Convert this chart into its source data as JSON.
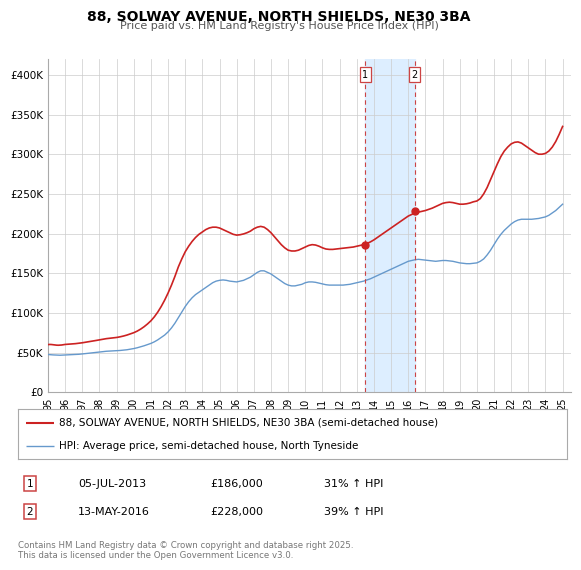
{
  "title": "88, SOLWAY AVENUE, NORTH SHIELDS, NE30 3BA",
  "subtitle": "Price paid vs. HM Land Registry's House Price Index (HPI)",
  "legend_line1": "88, SOLWAY AVENUE, NORTH SHIELDS, NE30 3BA (semi-detached house)",
  "legend_line2": "HPI: Average price, semi-detached house, North Tyneside",
  "transaction1_date": "05-JUL-2013",
  "transaction1_price": "£186,000",
  "transaction1_hpi": "31% ↑ HPI",
  "transaction1_year": 2013.5,
  "transaction2_date": "13-MAY-2016",
  "transaction2_price": "£228,000",
  "transaction2_hpi": "39% ↑ HPI",
  "transaction2_year": 2016.37,
  "footer": "Contains HM Land Registry data © Crown copyright and database right 2025.\nThis data is licensed under the Open Government Licence v3.0.",
  "hpi_color": "#6699cc",
  "price_color": "#cc2222",
  "marker_color": "#cc2222",
  "highlight_color": "#ddeeff",
  "vline_color": "#cc4444",
  "grid_color": "#cccccc",
  "background_color": "#ffffff",
  "ylim": [
    0,
    420000
  ],
  "xlim_start": 1995,
  "xlim_end": 2025.5,
  "ylabel_ticks": [
    0,
    50000,
    100000,
    150000,
    200000,
    250000,
    300000,
    350000,
    400000
  ],
  "ylabel_labels": [
    "£0",
    "£50K",
    "£100K",
    "£150K",
    "£200K",
    "£250K",
    "£300K",
    "£350K",
    "£400K"
  ],
  "hpi_data": [
    [
      1995.0,
      47500
    ],
    [
      1995.1,
      47300
    ],
    [
      1995.2,
      47100
    ],
    [
      1995.3,
      47000
    ],
    [
      1995.4,
      46900
    ],
    [
      1995.5,
      46800
    ],
    [
      1995.6,
      46700
    ],
    [
      1995.7,
      46600
    ],
    [
      1995.8,
      46700
    ],
    [
      1995.9,
      46800
    ],
    [
      1996.0,
      46900
    ],
    [
      1996.2,
      47000
    ],
    [
      1996.4,
      47200
    ],
    [
      1996.6,
      47500
    ],
    [
      1996.8,
      47800
    ],
    [
      1997.0,
      48200
    ],
    [
      1997.2,
      48700
    ],
    [
      1997.4,
      49200
    ],
    [
      1997.6,
      49700
    ],
    [
      1997.8,
      50200
    ],
    [
      1998.0,
      50700
    ],
    [
      1998.2,
      51200
    ],
    [
      1998.4,
      51600
    ],
    [
      1998.6,
      51900
    ],
    [
      1998.8,
      52100
    ],
    [
      1999.0,
      52300
    ],
    [
      1999.2,
      52600
    ],
    [
      1999.4,
      53000
    ],
    [
      1999.6,
      53500
    ],
    [
      1999.8,
      54200
    ],
    [
      2000.0,
      55000
    ],
    [
      2000.2,
      56000
    ],
    [
      2000.4,
      57200
    ],
    [
      2000.6,
      58500
    ],
    [
      2000.8,
      60000
    ],
    [
      2001.0,
      61500
    ],
    [
      2001.2,
      63500
    ],
    [
      2001.4,
      66000
    ],
    [
      2001.6,
      69000
    ],
    [
      2001.8,
      72000
    ],
    [
      2002.0,
      76000
    ],
    [
      2002.2,
      81000
    ],
    [
      2002.4,
      87000
    ],
    [
      2002.6,
      94000
    ],
    [
      2002.8,
      101000
    ],
    [
      2003.0,
      108000
    ],
    [
      2003.2,
      114000
    ],
    [
      2003.4,
      119000
    ],
    [
      2003.6,
      123000
    ],
    [
      2003.8,
      126000
    ],
    [
      2004.0,
      129000
    ],
    [
      2004.2,
      132000
    ],
    [
      2004.4,
      135000
    ],
    [
      2004.6,
      138000
    ],
    [
      2004.8,
      140000
    ],
    [
      2005.0,
      141000
    ],
    [
      2005.2,
      141500
    ],
    [
      2005.4,
      141000
    ],
    [
      2005.6,
      140000
    ],
    [
      2005.8,
      139500
    ],
    [
      2006.0,
      139000
    ],
    [
      2006.2,
      140000
    ],
    [
      2006.4,
      141000
    ],
    [
      2006.6,
      143000
    ],
    [
      2006.8,
      145000
    ],
    [
      2007.0,
      148000
    ],
    [
      2007.2,
      151000
    ],
    [
      2007.4,
      153000
    ],
    [
      2007.6,
      153000
    ],
    [
      2007.8,
      151000
    ],
    [
      2008.0,
      149000
    ],
    [
      2008.2,
      146000
    ],
    [
      2008.4,
      143000
    ],
    [
      2008.6,
      140000
    ],
    [
      2008.8,
      137000
    ],
    [
      2009.0,
      135000
    ],
    [
      2009.2,
      134000
    ],
    [
      2009.4,
      134000
    ],
    [
      2009.6,
      135000
    ],
    [
      2009.8,
      136000
    ],
    [
      2010.0,
      138000
    ],
    [
      2010.2,
      139000
    ],
    [
      2010.4,
      139000
    ],
    [
      2010.6,
      138500
    ],
    [
      2010.8,
      137500
    ],
    [
      2011.0,
      136500
    ],
    [
      2011.2,
      135500
    ],
    [
      2011.4,
      135000
    ],
    [
      2011.6,
      135000
    ],
    [
      2011.8,
      135000
    ],
    [
      2012.0,
      135000
    ],
    [
      2012.2,
      135000
    ],
    [
      2012.4,
      135500
    ],
    [
      2012.6,
      136000
    ],
    [
      2012.8,
      137000
    ],
    [
      2013.0,
      138000
    ],
    [
      2013.2,
      139000
    ],
    [
      2013.4,
      140000
    ],
    [
      2013.6,
      141500
    ],
    [
      2013.8,
      143000
    ],
    [
      2014.0,
      145000
    ],
    [
      2014.2,
      147000
    ],
    [
      2014.4,
      149000
    ],
    [
      2014.6,
      151000
    ],
    [
      2014.8,
      153000
    ],
    [
      2015.0,
      155000
    ],
    [
      2015.2,
      157000
    ],
    [
      2015.4,
      159000
    ],
    [
      2015.6,
      161000
    ],
    [
      2015.8,
      163000
    ],
    [
      2016.0,
      165000
    ],
    [
      2016.2,
      166000
    ],
    [
      2016.4,
      167000
    ],
    [
      2016.6,
      167500
    ],
    [
      2016.8,
      167000
    ],
    [
      2017.0,
      166500
    ],
    [
      2017.2,
      166000
    ],
    [
      2017.4,
      165500
    ],
    [
      2017.6,
      165000
    ],
    [
      2017.8,
      165500
    ],
    [
      2018.0,
      166000
    ],
    [
      2018.2,
      166000
    ],
    [
      2018.4,
      165500
    ],
    [
      2018.6,
      165000
    ],
    [
      2018.8,
      164000
    ],
    [
      2019.0,
      163000
    ],
    [
      2019.2,
      162500
    ],
    [
      2019.4,
      162000
    ],
    [
      2019.6,
      162000
    ],
    [
      2019.8,
      162500
    ],
    [
      2020.0,
      163000
    ],
    [
      2020.2,
      165000
    ],
    [
      2020.4,
      168000
    ],
    [
      2020.6,
      173000
    ],
    [
      2020.8,
      179000
    ],
    [
      2021.0,
      186000
    ],
    [
      2021.2,
      193000
    ],
    [
      2021.4,
      199000
    ],
    [
      2021.6,
      204000
    ],
    [
      2021.8,
      208000
    ],
    [
      2022.0,
      212000
    ],
    [
      2022.2,
      215000
    ],
    [
      2022.4,
      217000
    ],
    [
      2022.6,
      218000
    ],
    [
      2022.8,
      218000
    ],
    [
      2023.0,
      218000
    ],
    [
      2023.2,
      218000
    ],
    [
      2023.4,
      218500
    ],
    [
      2023.6,
      219000
    ],
    [
      2023.8,
      220000
    ],
    [
      2024.0,
      221000
    ],
    [
      2024.2,
      223000
    ],
    [
      2024.4,
      226000
    ],
    [
      2024.6,
      229000
    ],
    [
      2024.8,
      233000
    ],
    [
      2025.0,
      237000
    ]
  ],
  "price_data": [
    [
      1995.0,
      60000
    ],
    [
      1995.1,
      60200
    ],
    [
      1995.2,
      60100
    ],
    [
      1995.3,
      59800
    ],
    [
      1995.4,
      59500
    ],
    [
      1995.5,
      59300
    ],
    [
      1995.6,
      59200
    ],
    [
      1995.7,
      59300
    ],
    [
      1995.8,
      59500
    ],
    [
      1995.9,
      59800
    ],
    [
      1996.0,
      60200
    ],
    [
      1996.2,
      60500
    ],
    [
      1996.4,
      60800
    ],
    [
      1996.6,
      61200
    ],
    [
      1996.8,
      61700
    ],
    [
      1997.0,
      62300
    ],
    [
      1997.2,
      63000
    ],
    [
      1997.4,
      63700
    ],
    [
      1997.6,
      64400
    ],
    [
      1997.8,
      65200
    ],
    [
      1998.0,
      66000
    ],
    [
      1998.2,
      66800
    ],
    [
      1998.4,
      67500
    ],
    [
      1998.6,
      68000
    ],
    [
      1998.8,
      68500
    ],
    [
      1999.0,
      69000
    ],
    [
      1999.2,
      69800
    ],
    [
      1999.4,
      70800
    ],
    [
      1999.6,
      72000
    ],
    [
      1999.8,
      73500
    ],
    [
      2000.0,
      75000
    ],
    [
      2000.2,
      77000
    ],
    [
      2000.4,
      79500
    ],
    [
      2000.6,
      82500
    ],
    [
      2000.8,
      86000
    ],
    [
      2001.0,
      90000
    ],
    [
      2001.2,
      95000
    ],
    [
      2001.4,
      101000
    ],
    [
      2001.6,
      108000
    ],
    [
      2001.8,
      116000
    ],
    [
      2002.0,
      125000
    ],
    [
      2002.2,
      135000
    ],
    [
      2002.4,
      146000
    ],
    [
      2002.6,
      158000
    ],
    [
      2002.8,
      168000
    ],
    [
      2003.0,
      177000
    ],
    [
      2003.2,
      184000
    ],
    [
      2003.4,
      190000
    ],
    [
      2003.6,
      195000
    ],
    [
      2003.8,
      199000
    ],
    [
      2004.0,
      202000
    ],
    [
      2004.2,
      205000
    ],
    [
      2004.4,
      207000
    ],
    [
      2004.6,
      208000
    ],
    [
      2004.8,
      208000
    ],
    [
      2005.0,
      207000
    ],
    [
      2005.2,
      205000
    ],
    [
      2005.4,
      203000
    ],
    [
      2005.6,
      201000
    ],
    [
      2005.8,
      199000
    ],
    [
      2006.0,
      198000
    ],
    [
      2006.2,
      198500
    ],
    [
      2006.4,
      199500
    ],
    [
      2006.6,
      201000
    ],
    [
      2006.8,
      203000
    ],
    [
      2007.0,
      206000
    ],
    [
      2007.2,
      208000
    ],
    [
      2007.4,
      209000
    ],
    [
      2007.6,
      208000
    ],
    [
      2007.8,
      205000
    ],
    [
      2008.0,
      201000
    ],
    [
      2008.2,
      196000
    ],
    [
      2008.4,
      191000
    ],
    [
      2008.6,
      186000
    ],
    [
      2008.8,
      182000
    ],
    [
      2009.0,
      179000
    ],
    [
      2009.2,
      178000
    ],
    [
      2009.4,
      178000
    ],
    [
      2009.6,
      179000
    ],
    [
      2009.8,
      181000
    ],
    [
      2010.0,
      183000
    ],
    [
      2010.2,
      185000
    ],
    [
      2010.4,
      186000
    ],
    [
      2010.6,
      185500
    ],
    [
      2010.8,
      184000
    ],
    [
      2011.0,
      182000
    ],
    [
      2011.2,
      180500
    ],
    [
      2011.4,
      180000
    ],
    [
      2011.6,
      180000
    ],
    [
      2011.8,
      180500
    ],
    [
      2012.0,
      181000
    ],
    [
      2012.2,
      181500
    ],
    [
      2012.4,
      182000
    ],
    [
      2012.6,
      182500
    ],
    [
      2012.8,
      183000
    ],
    [
      2013.0,
      184000
    ],
    [
      2013.2,
      185000
    ],
    [
      2013.4,
      186000
    ],
    [
      2013.6,
      187500
    ],
    [
      2013.8,
      189500
    ],
    [
      2014.0,
      192000
    ],
    [
      2014.2,
      195000
    ],
    [
      2014.4,
      198000
    ],
    [
      2014.6,
      201000
    ],
    [
      2014.8,
      204000
    ],
    [
      2015.0,
      207000
    ],
    [
      2015.2,
      210000
    ],
    [
      2015.4,
      213000
    ],
    [
      2015.6,
      216000
    ],
    [
      2015.8,
      219000
    ],
    [
      2016.0,
      222000
    ],
    [
      2016.2,
      224000
    ],
    [
      2016.4,
      226000
    ],
    [
      2016.6,
      227000
    ],
    [
      2016.8,
      228000
    ],
    [
      2017.0,
      229000
    ],
    [
      2017.2,
      230500
    ],
    [
      2017.4,
      232000
    ],
    [
      2017.6,
      234000
    ],
    [
      2017.8,
      236000
    ],
    [
      2018.0,
      238000
    ],
    [
      2018.2,
      239000
    ],
    [
      2018.4,
      239500
    ],
    [
      2018.6,
      239000
    ],
    [
      2018.8,
      238000
    ],
    [
      2019.0,
      237000
    ],
    [
      2019.2,
      237000
    ],
    [
      2019.4,
      237500
    ],
    [
      2019.6,
      238500
    ],
    [
      2019.8,
      240000
    ],
    [
      2020.0,
      241000
    ],
    [
      2020.2,
      244000
    ],
    [
      2020.4,
      250000
    ],
    [
      2020.6,
      258000
    ],
    [
      2020.8,
      268000
    ],
    [
      2021.0,
      278000
    ],
    [
      2021.2,
      288000
    ],
    [
      2021.4,
      297000
    ],
    [
      2021.6,
      304000
    ],
    [
      2021.8,
      309000
    ],
    [
      2022.0,
      313000
    ],
    [
      2022.2,
      315000
    ],
    [
      2022.4,
      315500
    ],
    [
      2022.6,
      314000
    ],
    [
      2022.8,
      311000
    ],
    [
      2023.0,
      308000
    ],
    [
      2023.2,
      305000
    ],
    [
      2023.4,
      302000
    ],
    [
      2023.6,
      300000
    ],
    [
      2023.8,
      300000
    ],
    [
      2024.0,
      301000
    ],
    [
      2024.2,
      304000
    ],
    [
      2024.4,
      309000
    ],
    [
      2024.6,
      316000
    ],
    [
      2024.8,
      325000
    ],
    [
      2025.0,
      335000
    ]
  ]
}
